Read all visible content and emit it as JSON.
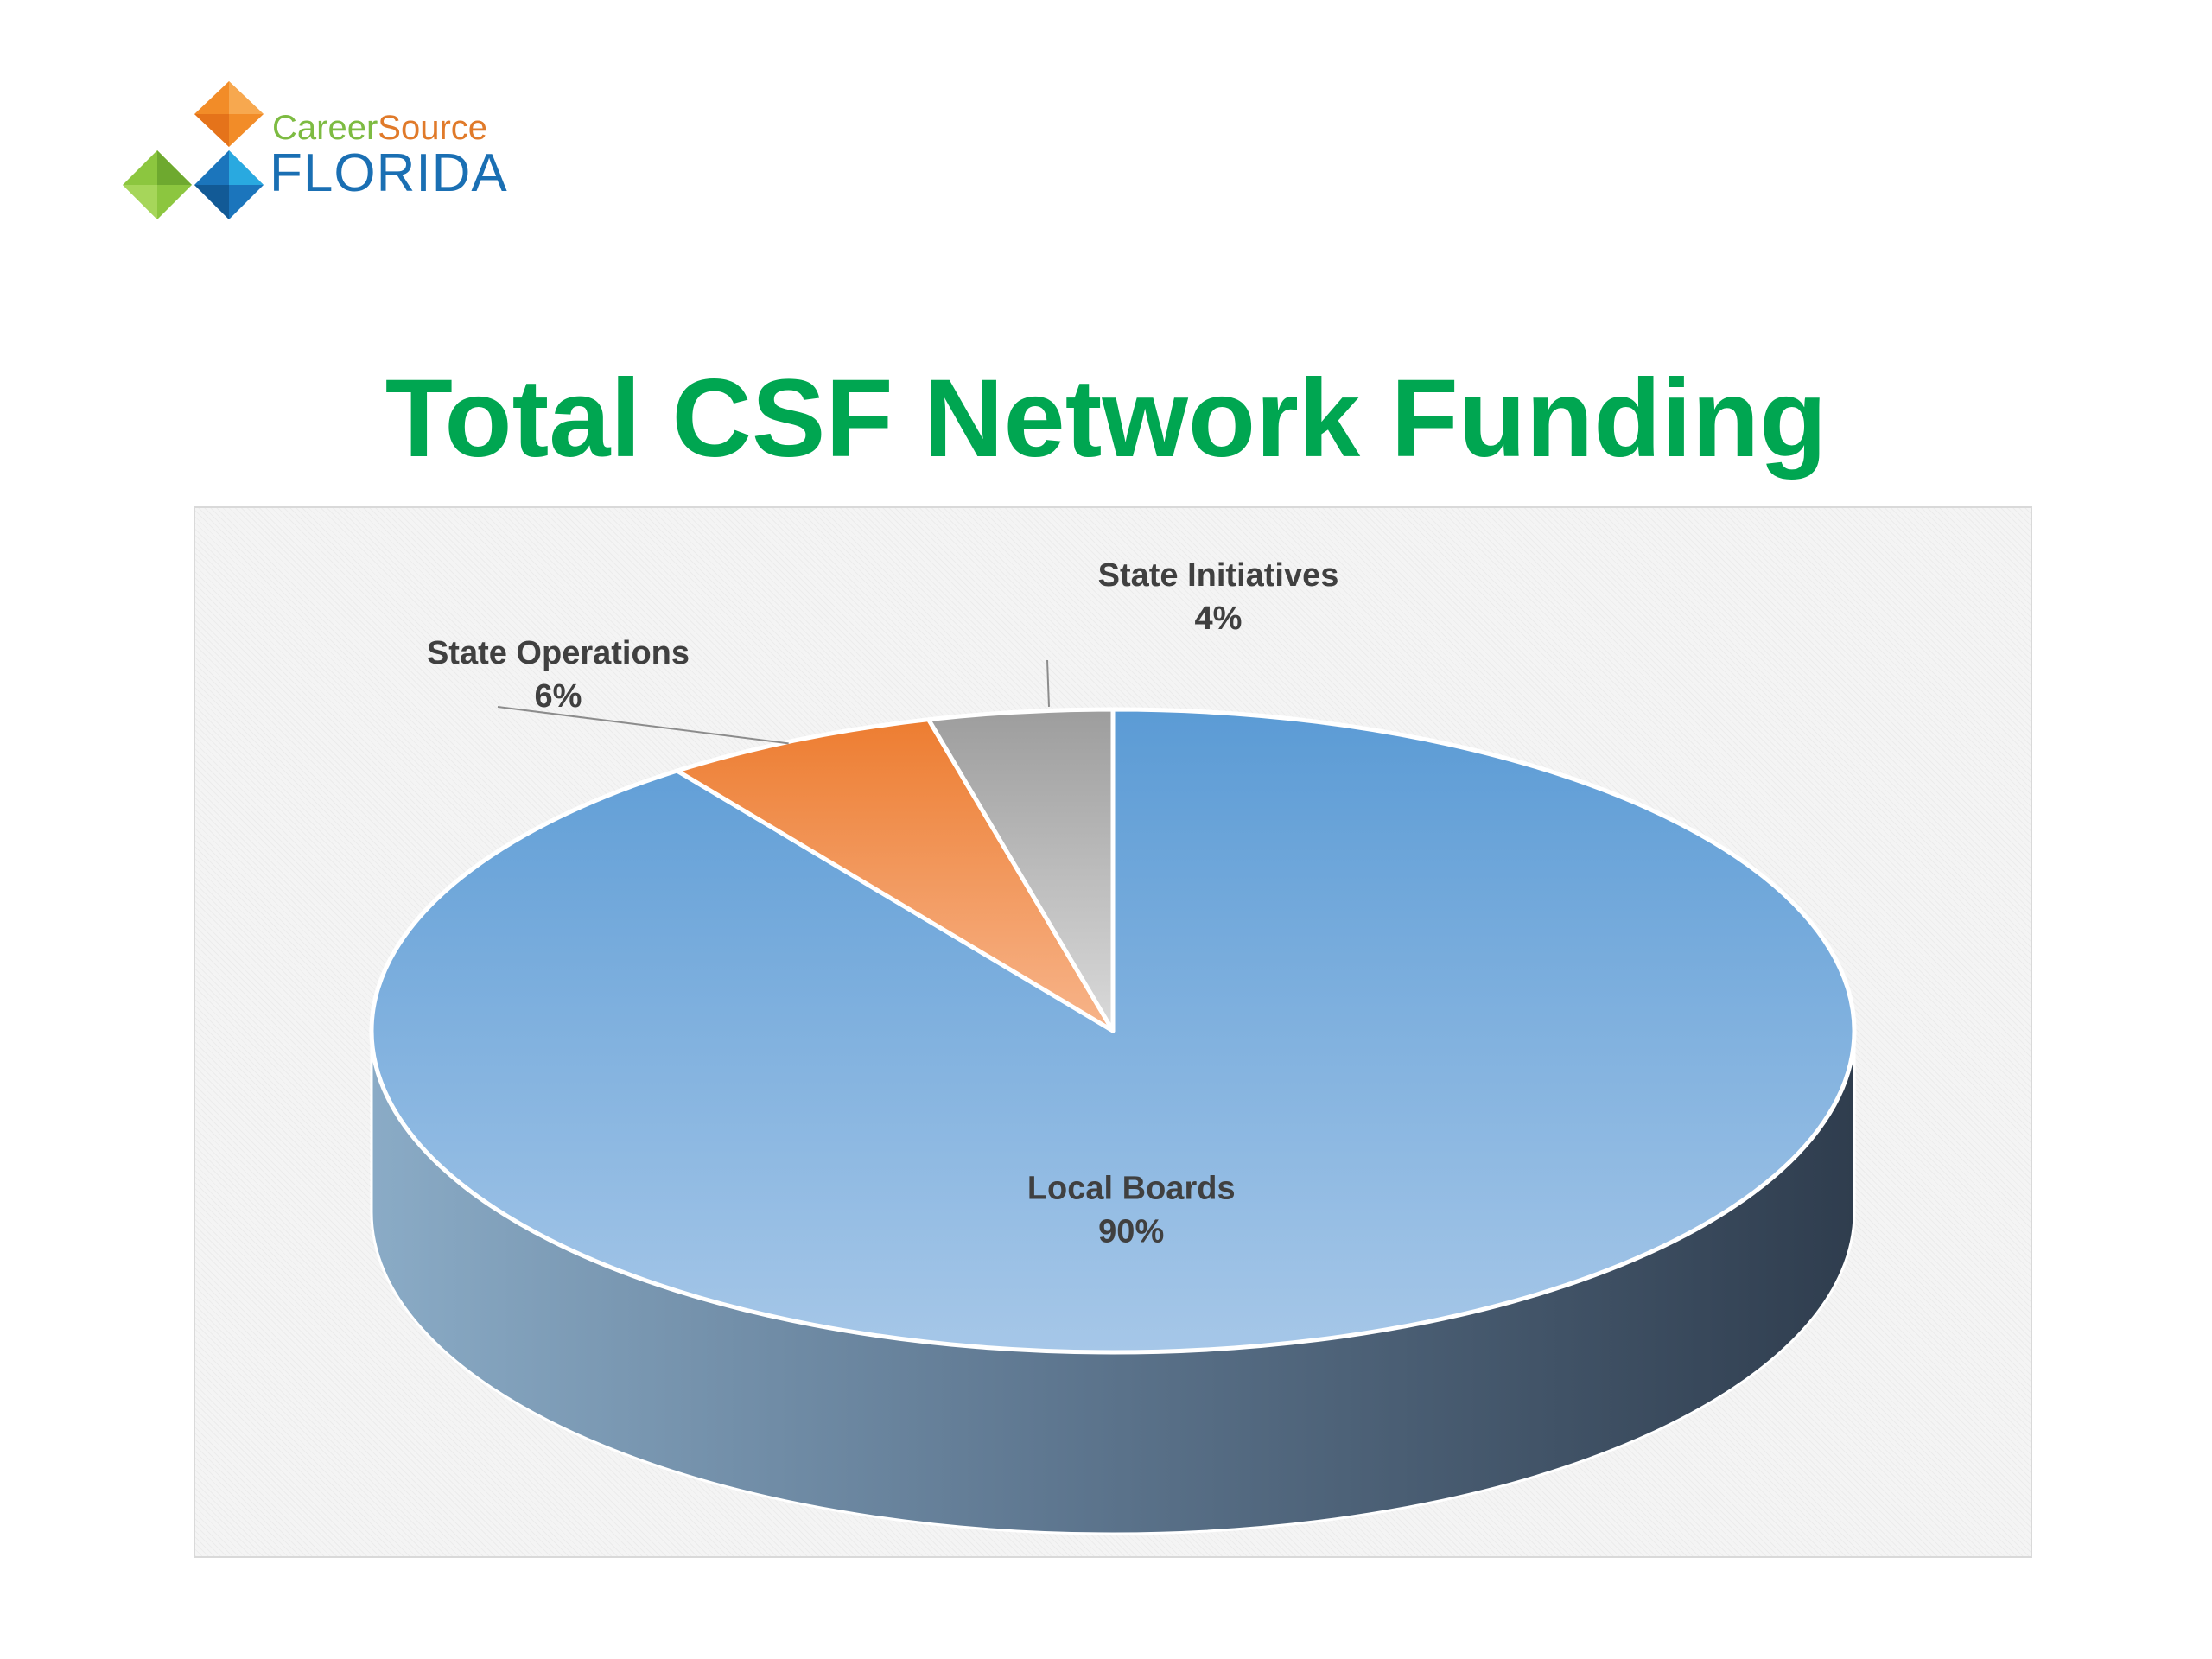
{
  "logo": {
    "career": "Career",
    "source": "Source",
    "state": "FLORIDA",
    "colors": {
      "orange": "#f28c28",
      "green": "#8cc63f",
      "blue": "#1b75bc"
    }
  },
  "chart_data": {
    "type": "pie",
    "title": "Total CSF Network Funding",
    "style": "3d",
    "slices": [
      {
        "label": "Local Boards",
        "value": 90,
        "value_label": "90%",
        "color": "#5b9bd5"
      },
      {
        "label": "State Operations",
        "value": 6,
        "value_label": "6%",
        "color": "#ed7d31"
      },
      {
        "label": "State Initiatives",
        "value": 4,
        "value_label": "4%",
        "color": "#a5a5a5"
      }
    ],
    "legend": "none",
    "data_labels": "label and percentage"
  }
}
